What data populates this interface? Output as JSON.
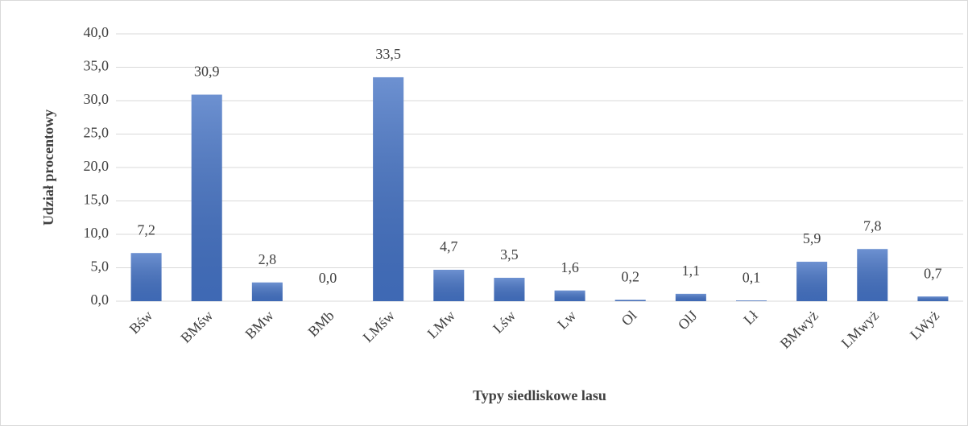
{
  "chart_data": {
    "type": "bar",
    "x_label": "Typy siedliskowe lasu",
    "y_label": "Udział procentowy",
    "categories": [
      "Bśw",
      "BMśw",
      "BMw",
      "BMb",
      "LMśw",
      "LMw",
      "Lśw",
      "Lw",
      "Ol",
      "OlJ",
      "Lł",
      "BMwyż",
      "LMwyż",
      "LWyż"
    ],
    "values": [
      7.2,
      30.9,
      2.8,
      0.0,
      33.5,
      4.7,
      3.5,
      1.6,
      0.2,
      1.1,
      0.1,
      5.9,
      7.8,
      0.7
    ],
    "value_labels": [
      "7,2",
      "30,9",
      "2,8",
      "0,0",
      "33,5",
      "4,7",
      "3,5",
      "1,6",
      "0,2",
      "1,1",
      "0,1",
      "5,9",
      "7,8",
      "0,7"
    ],
    "color": "#4472c4",
    "ylim": [
      0,
      40
    ],
    "yticks": [
      {
        "value": 0,
        "label": "0,0"
      },
      {
        "value": 5,
        "label": "5,0"
      },
      {
        "value": 10,
        "label": "10,0"
      },
      {
        "value": 15,
        "label": "15,0"
      },
      {
        "value": 20,
        "label": "20,0"
      },
      {
        "value": 25,
        "label": "25,0"
      },
      {
        "value": 30,
        "label": "30,0"
      },
      {
        "value": 35,
        "label": "35,0"
      },
      {
        "value": 40,
        "label": "40,0"
      }
    ],
    "grid": true
  }
}
